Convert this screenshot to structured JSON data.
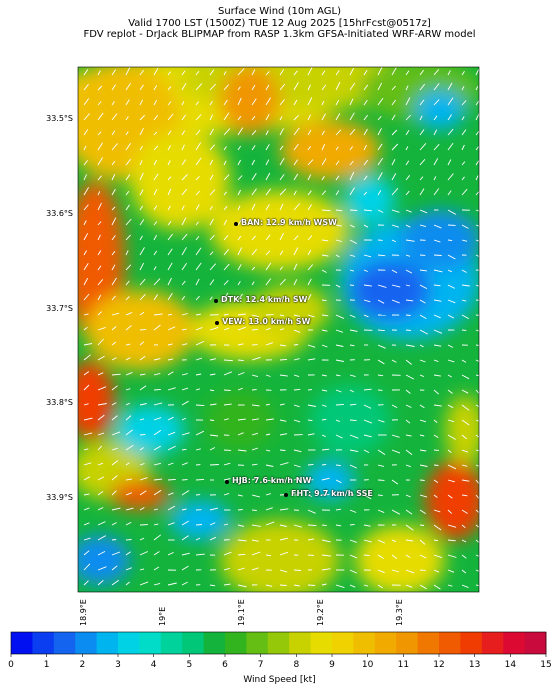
{
  "title": {
    "line1": "Surface Wind (10m AGL)",
    "line2": "Valid 1700 LST (1500Z) TUE 12 Aug 2025 [15hrFcst@0517z]",
    "line3": "FDV replot - DrJack BLIPMAP from RASP 1.3km GFSA-Initiated WRF-ARW model"
  },
  "map": {
    "lat_labels": [
      "33.5°S",
      "33.6°S",
      "33.7°S",
      "33.8°S",
      "33.9°S"
    ],
    "lat_values": [
      -33.5,
      -33.6,
      -33.7,
      -33.8,
      -33.9
    ],
    "lon_labels": [
      "18.9°E",
      "19°E",
      "19.1°E",
      "19.2°E",
      "19.3°E"
    ],
    "lon_values": [
      18.9,
      19.0,
      19.1,
      19.2,
      19.3
    ]
  },
  "stations": [
    {
      "label": "BAN: 12.9 km/h WSW"
    },
    {
      "label": "DTK: 12.4 km/h SW"
    },
    {
      "label": "VEW: 13.0 km/h SW"
    },
    {
      "label": "HJB: 7.6 km/h NW"
    },
    {
      "label": "FHT: 9.7 km/h SSE"
    }
  ],
  "colorbar": {
    "label": "Wind Speed [kt]",
    "ticks": [
      "0",
      "1",
      "2",
      "3",
      "4",
      "5",
      "6",
      "7",
      "8",
      "9",
      "10",
      "11",
      "12",
      "13",
      "14",
      "15"
    ],
    "min": 0,
    "max": 15,
    "colors": [
      "#0010f0",
      "#0a3ef0",
      "#1464f0",
      "#0a8cf0",
      "#00b4f0",
      "#00d2e6",
      "#00dcc8",
      "#00d29c",
      "#00c878",
      "#14b43c",
      "#32b41e",
      "#64be14",
      "#96c80a",
      "#c8d200",
      "#e6dc00",
      "#f0d200",
      "#f0be00",
      "#f0aa00",
      "#f09600",
      "#f07800",
      "#f05a00",
      "#f03c00",
      "#e61e1e",
      "#dc0a32",
      "#c80a3c"
    ]
  }
}
